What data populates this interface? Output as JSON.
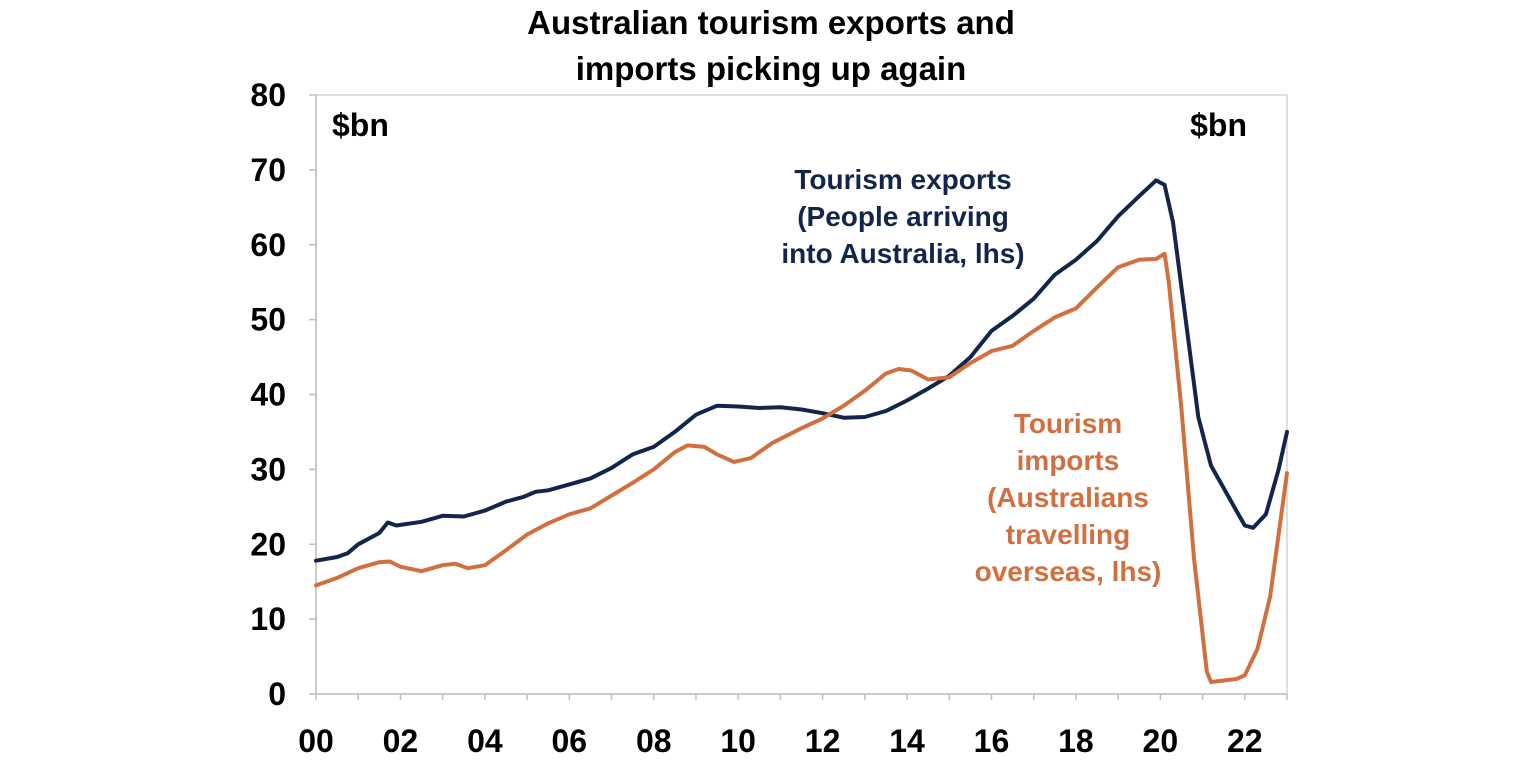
{
  "chart_data": {
    "type": "line",
    "title": [
      "Australian tourism exports and",
      "imports picking up again"
    ],
    "unit_left": "$bn",
    "unit_right": "$bn",
    "xlim": [
      0,
      23
    ],
    "ylim": [
      0,
      80
    ],
    "x_ticks": [
      {
        "value": 0,
        "label": "00"
      },
      {
        "value": 2,
        "label": "02"
      },
      {
        "value": 4,
        "label": "04"
      },
      {
        "value": 6,
        "label": "06"
      },
      {
        "value": 8,
        "label": "08"
      },
      {
        "value": 10,
        "label": "10"
      },
      {
        "value": 12,
        "label": "12"
      },
      {
        "value": 14,
        "label": "14"
      },
      {
        "value": 16,
        "label": "16"
      },
      {
        "value": 18,
        "label": "18"
      },
      {
        "value": 20,
        "label": "20"
      },
      {
        "value": 22,
        "label": "22"
      }
    ],
    "y_ticks": [
      0,
      10,
      20,
      30,
      40,
      50,
      60,
      70,
      80
    ],
    "grid": false,
    "series": [
      {
        "name": "Tourism exports",
        "color": "#13254a",
        "annotation": [
          "Tourism exports",
          "(People arriving",
          "into Australia, lhs)"
        ],
        "points": [
          [
            0.0,
            17.8
          ],
          [
            0.5,
            18.3
          ],
          [
            0.75,
            18.8
          ],
          [
            1.0,
            20.0
          ],
          [
            1.5,
            21.5
          ],
          [
            1.7,
            22.9
          ],
          [
            1.9,
            22.5
          ],
          [
            2.5,
            23.0
          ],
          [
            3.0,
            23.8
          ],
          [
            3.5,
            23.7
          ],
          [
            4.0,
            24.5
          ],
          [
            4.5,
            25.7
          ],
          [
            4.9,
            26.3
          ],
          [
            5.2,
            27.0
          ],
          [
            5.5,
            27.2
          ],
          [
            6.0,
            28.0
          ],
          [
            6.5,
            28.8
          ],
          [
            7.0,
            30.2
          ],
          [
            7.5,
            32.0
          ],
          [
            8.0,
            33.0
          ],
          [
            8.5,
            35.0
          ],
          [
            9.0,
            37.3
          ],
          [
            9.5,
            38.5
          ],
          [
            10.0,
            38.4
          ],
          [
            10.5,
            38.2
          ],
          [
            11.0,
            38.3
          ],
          [
            11.5,
            38.0
          ],
          [
            12.0,
            37.5
          ],
          [
            12.5,
            36.9
          ],
          [
            13.0,
            37.0
          ],
          [
            13.5,
            37.8
          ],
          [
            14.0,
            39.2
          ],
          [
            14.5,
            40.8
          ],
          [
            15.0,
            42.5
          ],
          [
            15.5,
            45.0
          ],
          [
            16.0,
            48.5
          ],
          [
            16.5,
            50.5
          ],
          [
            17.0,
            52.8
          ],
          [
            17.5,
            56.0
          ],
          [
            18.0,
            58.0
          ],
          [
            18.5,
            60.5
          ],
          [
            19.0,
            63.8
          ],
          [
            19.5,
            66.5
          ],
          [
            19.9,
            68.6
          ],
          [
            20.1,
            68.0
          ],
          [
            20.3,
            63.0
          ],
          [
            20.6,
            50.0
          ],
          [
            20.9,
            37.0
          ],
          [
            21.2,
            30.5
          ],
          [
            21.5,
            27.5
          ],
          [
            21.8,
            24.5
          ],
          [
            22.0,
            22.5
          ],
          [
            22.2,
            22.2
          ],
          [
            22.5,
            24.0
          ],
          [
            22.8,
            30.0
          ],
          [
            23.0,
            35.0
          ]
        ]
      },
      {
        "name": "Tourism imports",
        "color": "#d26f40",
        "annotation": [
          "Tourism",
          "imports",
          "(Australians",
          "travelling",
          "overseas, lhs)"
        ],
        "points": [
          [
            0.0,
            14.5
          ],
          [
            0.5,
            15.5
          ],
          [
            1.0,
            16.8
          ],
          [
            1.5,
            17.6
          ],
          [
            1.75,
            17.7
          ],
          [
            2.0,
            17.0
          ],
          [
            2.5,
            16.4
          ],
          [
            3.0,
            17.2
          ],
          [
            3.3,
            17.4
          ],
          [
            3.6,
            16.8
          ],
          [
            4.0,
            17.2
          ],
          [
            4.5,
            19.2
          ],
          [
            5.0,
            21.3
          ],
          [
            5.5,
            22.8
          ],
          [
            6.0,
            24.0
          ],
          [
            6.5,
            24.8
          ],
          [
            7.0,
            26.5
          ],
          [
            7.5,
            28.2
          ],
          [
            8.0,
            30.0
          ],
          [
            8.5,
            32.3
          ],
          [
            8.8,
            33.2
          ],
          [
            9.2,
            33.0
          ],
          [
            9.5,
            32.0
          ],
          [
            9.9,
            31.0
          ],
          [
            10.3,
            31.5
          ],
          [
            10.8,
            33.5
          ],
          [
            11.5,
            35.5
          ],
          [
            12.0,
            36.8
          ],
          [
            12.5,
            38.5
          ],
          [
            13.0,
            40.5
          ],
          [
            13.5,
            42.8
          ],
          [
            13.8,
            43.4
          ],
          [
            14.1,
            43.2
          ],
          [
            14.5,
            42.0
          ],
          [
            15.0,
            42.3
          ],
          [
            15.5,
            44.2
          ],
          [
            16.0,
            45.8
          ],
          [
            16.5,
            46.5
          ],
          [
            17.0,
            48.5
          ],
          [
            17.5,
            50.3
          ],
          [
            18.0,
            51.5
          ],
          [
            18.5,
            54.3
          ],
          [
            19.0,
            57.0
          ],
          [
            19.5,
            58.0
          ],
          [
            19.9,
            58.1
          ],
          [
            20.1,
            58.8
          ],
          [
            20.2,
            55.0
          ],
          [
            20.5,
            38.0
          ],
          [
            20.8,
            18.0
          ],
          [
            21.1,
            3.0
          ],
          [
            21.2,
            1.6
          ],
          [
            21.5,
            1.8
          ],
          [
            21.8,
            2.0
          ],
          [
            22.0,
            2.5
          ],
          [
            22.3,
            6.0
          ],
          [
            22.6,
            13.0
          ],
          [
            23.0,
            29.5
          ]
        ]
      }
    ]
  }
}
